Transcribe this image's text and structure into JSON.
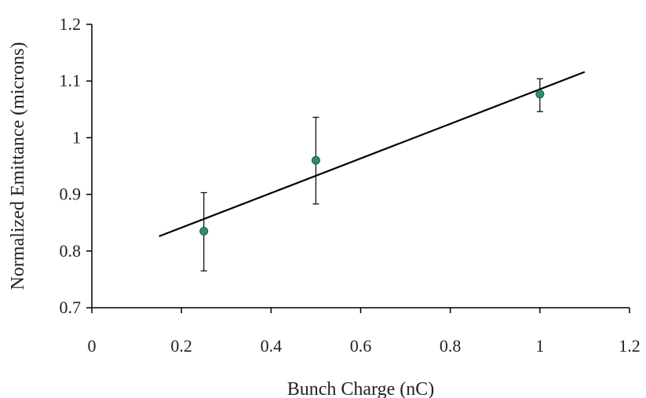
{
  "chart_data": {
    "type": "scatter",
    "title": "",
    "xlabel": "Bunch Charge (nC)",
    "ylabel": "Normalized Emittance (microns)",
    "xlim": [
      0,
      1.2
    ],
    "ylim": [
      0.7,
      1.2
    ],
    "xticks": [
      "0",
      "0.2",
      "0.4",
      "0.6",
      "0.8",
      "1",
      "1.2"
    ],
    "yticks": [
      "0.7",
      "0.8",
      "0.9",
      "1",
      "1.1",
      "1.2"
    ],
    "grid": false,
    "legend": "none",
    "series": [
      {
        "kind": "scatter",
        "x": [
          0.25,
          0.5,
          1.0
        ],
        "y": [
          0.835,
          0.96,
          1.077
        ],
        "y_err_low": [
          0.765,
          0.883,
          1.046
        ],
        "y_err_high": [
          0.903,
          1.036,
          1.104
        ],
        "color": "#2e8b75"
      },
      {
        "kind": "line",
        "x": [
          0.15,
          1.1
        ],
        "y": [
          0.826,
          1.116
        ],
        "color": "#000000"
      }
    ]
  }
}
